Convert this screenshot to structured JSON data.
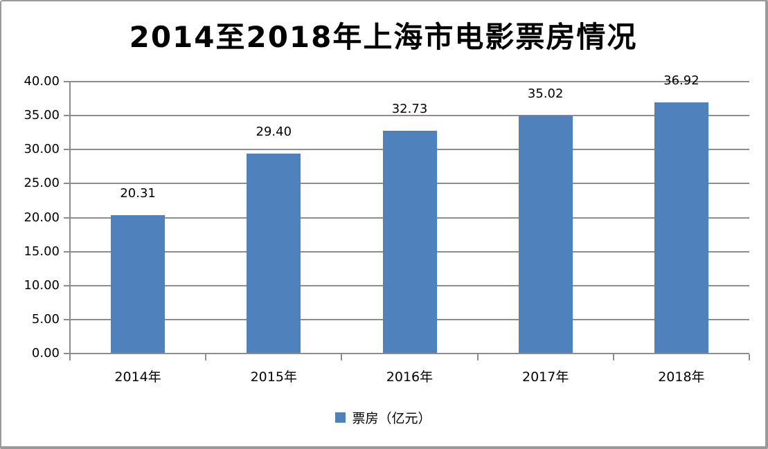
{
  "chart_data": {
    "type": "bar",
    "title": "2014至2018年上海市电影票房情况",
    "categories": [
      "2014年",
      "2015年",
      "2016年",
      "2017年",
      "2018年"
    ],
    "series": [
      {
        "name": "票房（亿元）",
        "values": [
          20.31,
          29.4,
          32.73,
          35.02,
          36.92
        ]
      }
    ],
    "value_labels": [
      "20.31",
      "29.40",
      "32.73",
      "35.02",
      "36.92"
    ],
    "ylim": [
      0,
      40
    ],
    "ytick_step": 5,
    "ytick_labels": [
      "0.00",
      "5.00",
      "10.00",
      "15.00",
      "20.00",
      "25.00",
      "30.00",
      "35.00",
      "40.00"
    ],
    "xlabel": "",
    "ylabel": "",
    "grid": true,
    "legend_position": "bottom",
    "legend_label": "票房（亿元）",
    "colors": {
      "bar": "#4F81BD",
      "grid": "#8C8C8C",
      "axis": "#8C8C8C",
      "text": "#000000",
      "background": "#FFFFFF",
      "frame_border": "#9A9A9A"
    }
  }
}
